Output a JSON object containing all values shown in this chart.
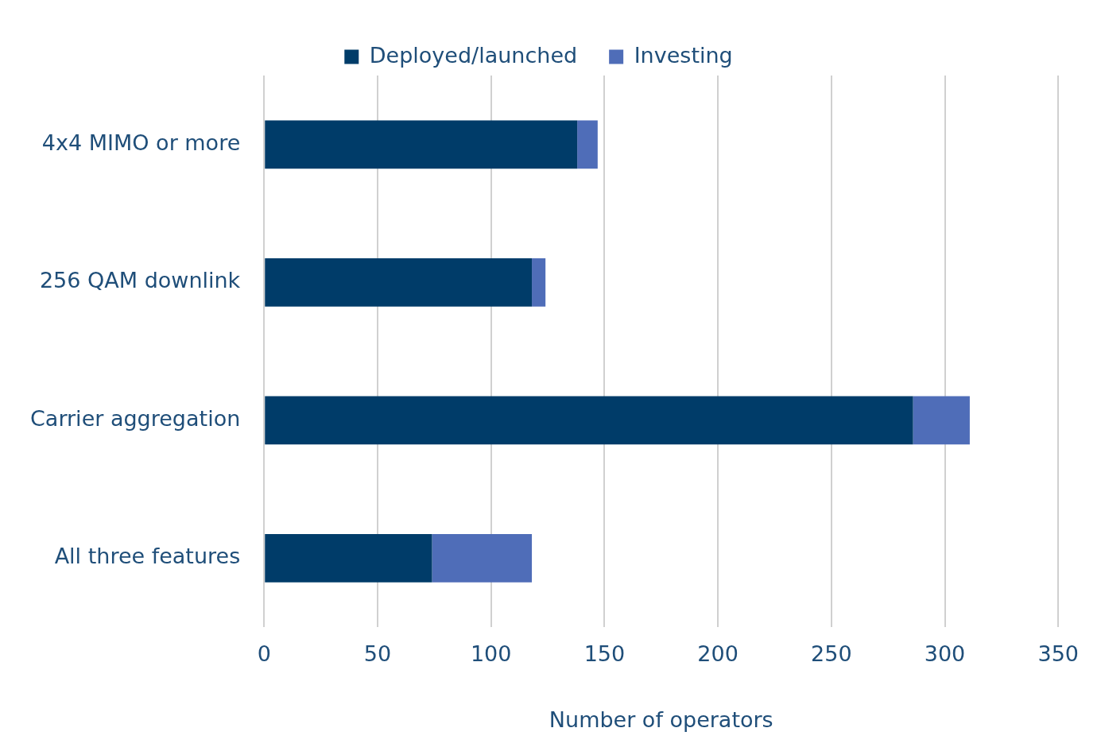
{
  "chart_data": {
    "type": "bar",
    "orientation": "horizontal",
    "stacked": true,
    "xlabel": "Number of operators",
    "categories": [
      "4x4 MIMO or more",
      "256 QAM downlink",
      "Carrier aggregation",
      "All three features"
    ],
    "series": [
      {
        "name": "Deployed/launched",
        "color": "#003c69",
        "values": [
          138,
          118,
          286,
          74
        ]
      },
      {
        "name": "Investing",
        "color": "#4f6db8",
        "values": [
          9,
          6,
          25,
          44
        ]
      }
    ],
    "xlim": [
      0,
      350
    ],
    "xticks": [
      0,
      50,
      100,
      150,
      200,
      250,
      300,
      350
    ],
    "grid": "x",
    "legend": "top"
  }
}
